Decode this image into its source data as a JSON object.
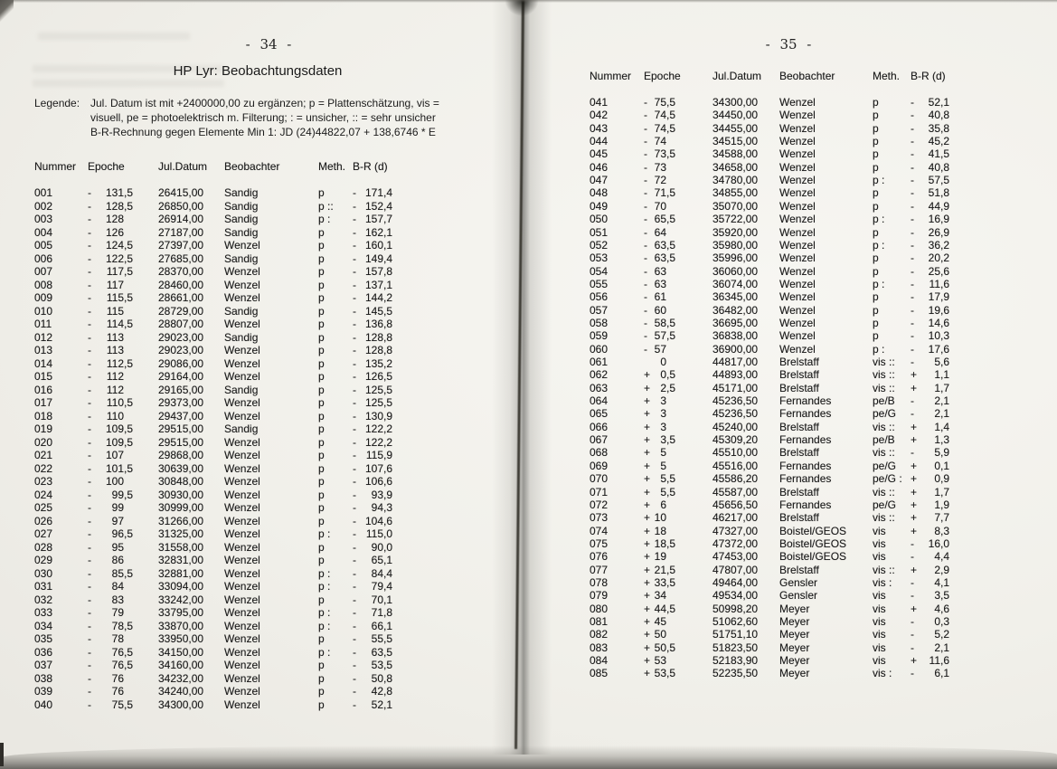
{
  "document": {
    "left_page": {
      "page_number": "- 34 -",
      "title": "HP Lyr: Beobachtungsdaten",
      "legend_label": "Legende:",
      "legend_lines": [
        "Jul. Datum ist mit +2400000,00 zu ergänzen; p = Plattenschätzung, vis =",
        "visuell, pe = photoelektrisch m. Filterung; : = unsicher, :: = sehr unsicher",
        "B-R-Rechnung gegen Elemente Min 1: JD (24)44822,07 + 138,6746 * E"
      ],
      "columns": [
        "Nummer",
        "Epoche",
        "Jul.Datum",
        "Beobachter",
        "Meth.",
        "B-R (d)"
      ],
      "rows": [
        [
          "001",
          "-",
          "131,5",
          "26415,00",
          "Sandig",
          "p",
          "-",
          "171,4"
        ],
        [
          "002",
          "-",
          "128,5",
          "26850,00",
          "Sandig",
          "p ::",
          "-",
          "152,4"
        ],
        [
          "003",
          "-",
          "128",
          "26914,00",
          "Sandig",
          "p :",
          "-",
          "157,7"
        ],
        [
          "004",
          "-",
          "126",
          "27187,00",
          "Sandig",
          "p",
          "-",
          "162,1"
        ],
        [
          "005",
          "-",
          "124,5",
          "27397,00",
          "Wenzel",
          "p",
          "-",
          "160,1"
        ],
        [
          "006",
          "-",
          "122,5",
          "27685,00",
          "Sandig",
          "p",
          "-",
          "149,4"
        ],
        [
          "007",
          "-",
          "117,5",
          "28370,00",
          "Wenzel",
          "p",
          "-",
          "157,8"
        ],
        [
          "008",
          "-",
          "117",
          "28460,00",
          "Wenzel",
          "p",
          "-",
          "137,1"
        ],
        [
          "009",
          "-",
          "115,5",
          "28661,00",
          "Wenzel",
          "p",
          "-",
          "144,2"
        ],
        [
          "010",
          "-",
          "115",
          "28729,00",
          "Sandig",
          "p",
          "-",
          "145,5"
        ],
        [
          "011",
          "-",
          "114,5",
          "28807,00",
          "Wenzel",
          "p",
          "-",
          "136,8"
        ],
        [
          "012",
          "-",
          "113",
          "29023,00",
          "Sandig",
          "p",
          "-",
          "128,8"
        ],
        [
          "013",
          "-",
          "113",
          "29023,00",
          "Wenzel",
          "p",
          "-",
          "128,8"
        ],
        [
          "014",
          "-",
          "112,5",
          "29086,00",
          "Wenzel",
          "p",
          "-",
          "135,2"
        ],
        [
          "015",
          "-",
          "112",
          "29164,00",
          "Wenzel",
          "p",
          "-",
          "126,5"
        ],
        [
          "016",
          "-",
          "112",
          "29165,00",
          "Sandig",
          "p",
          "-",
          "125,5"
        ],
        [
          "017",
          "-",
          "110,5",
          "29373,00",
          "Wenzel",
          "p",
          "-",
          "125,5"
        ],
        [
          "018",
          "-",
          "110",
          "29437,00",
          "Wenzel",
          "p",
          "-",
          "130,9"
        ],
        [
          "019",
          "-",
          "109,5",
          "29515,00",
          "Sandig",
          "p",
          "-",
          "122,2"
        ],
        [
          "020",
          "-",
          "109,5",
          "29515,00",
          "Wenzel",
          "p",
          "-",
          "122,2"
        ],
        [
          "021",
          "-",
          "107",
          "29868,00",
          "Wenzel",
          "p",
          "-",
          "115,9"
        ],
        [
          "022",
          "-",
          "101,5",
          "30639,00",
          "Wenzel",
          "p",
          "-",
          "107,6"
        ],
        [
          "023",
          "-",
          "100",
          "30848,00",
          "Wenzel",
          "p",
          "-",
          "106,6"
        ],
        [
          "024",
          "-",
          "99,5",
          "30930,00",
          "Wenzel",
          "p",
          "-",
          "93,9"
        ],
        [
          "025",
          "-",
          "99",
          "30999,00",
          "Wenzel",
          "p",
          "-",
          "94,3"
        ],
        [
          "026",
          "-",
          "97",
          "31266,00",
          "Wenzel",
          "p",
          "-",
          "104,6"
        ],
        [
          "027",
          "-",
          "96,5",
          "31325,00",
          "Wenzel",
          "p :",
          "-",
          "115,0"
        ],
        [
          "028",
          "-",
          "95",
          "31558,00",
          "Wenzel",
          "p",
          "-",
          "90,0"
        ],
        [
          "029",
          "-",
          "86",
          "32831,00",
          "Wenzel",
          "p",
          "-",
          "65,1"
        ],
        [
          "030",
          "-",
          "85,5",
          "32881,00",
          "Wenzel",
          "p :",
          "-",
          "84,4"
        ],
        [
          "031",
          "-",
          "84",
          "33094,00",
          "Wenzel",
          "p :",
          "-",
          "79,4"
        ],
        [
          "032",
          "-",
          "83",
          "33242,00",
          "Wenzel",
          "p",
          "-",
          "70,1"
        ],
        [
          "033",
          "-",
          "79",
          "33795,00",
          "Wenzel",
          "p :",
          "-",
          "71,8"
        ],
        [
          "034",
          "-",
          "78,5",
          "33870,00",
          "Wenzel",
          "p :",
          "-",
          "66,1"
        ],
        [
          "035",
          "-",
          "78",
          "33950,00",
          "Wenzel",
          "p",
          "-",
          "55,5"
        ],
        [
          "036",
          "-",
          "76,5",
          "34150,00",
          "Wenzel",
          "p :",
          "-",
          "63,5"
        ],
        [
          "037",
          "-",
          "76,5",
          "34160,00",
          "Wenzel",
          "p",
          "-",
          "53,5"
        ],
        [
          "038",
          "-",
          "76",
          "34232,00",
          "Wenzel",
          "p",
          "-",
          "50,8"
        ],
        [
          "039",
          "-",
          "76",
          "34240,00",
          "Wenzel",
          "p",
          "-",
          "42,8"
        ],
        [
          "040",
          "-",
          "75,5",
          "34300,00",
          "Wenzel",
          "p",
          "-",
          "52,1"
        ]
      ]
    },
    "right_page": {
      "page_number": "- 35 -",
      "columns": [
        "Nummer",
        "Epoche",
        "Jul.Datum",
        "Beobachter",
        "Meth.",
        "B-R (d)"
      ],
      "rows": [
        [
          "041",
          "-",
          "75,5",
          "34300,00",
          "Wenzel",
          "p",
          "-",
          "52,1"
        ],
        [
          "042",
          "-",
          "74,5",
          "34450,00",
          "Wenzel",
          "p",
          "-",
          "40,8"
        ],
        [
          "043",
          "-",
          "74,5",
          "34455,00",
          "Wenzel",
          "p",
          "-",
          "35,8"
        ],
        [
          "044",
          "-",
          "74",
          "34515,00",
          "Wenzel",
          "p",
          "-",
          "45,2"
        ],
        [
          "045",
          "-",
          "73,5",
          "34588,00",
          "Wenzel",
          "p",
          "-",
          "41,5"
        ],
        [
          "046",
          "-",
          "73",
          "34658,00",
          "Wenzel",
          "p",
          "-",
          "40,8"
        ],
        [
          "047",
          "-",
          "72",
          "34780,00",
          "Wenzel",
          "p :",
          "-",
          "57,5"
        ],
        [
          "048",
          "-",
          "71,5",
          "34855,00",
          "Wenzel",
          "p",
          "-",
          "51,8"
        ],
        [
          "049",
          "-",
          "70",
          "35070,00",
          "Wenzel",
          "p",
          "-",
          "44,9"
        ],
        [
          "050",
          "-",
          "65,5",
          "35722,00",
          "Wenzel",
          "p :",
          "-",
          "16,9"
        ],
        [
          "051",
          "-",
          "64",
          "35920,00",
          "Wenzel",
          "p",
          "-",
          "26,9"
        ],
        [
          "052",
          "-",
          "63,5",
          "35980,00",
          "Wenzel",
          "p :",
          "-",
          "36,2"
        ],
        [
          "053",
          "-",
          "63,5",
          "35996,00",
          "Wenzel",
          "p",
          "-",
          "20,2"
        ],
        [
          "054",
          "-",
          "63",
          "36060,00",
          "Wenzel",
          "p",
          "-",
          "25,6"
        ],
        [
          "055",
          "-",
          "63",
          "36074,00",
          "Wenzel",
          "p :",
          "-",
          "11,6"
        ],
        [
          "056",
          "-",
          "61",
          "36345,00",
          "Wenzel",
          "p",
          "-",
          "17,9"
        ],
        [
          "057",
          "-",
          "60",
          "36482,00",
          "Wenzel",
          "p",
          "-",
          "19,6"
        ],
        [
          "058",
          "-",
          "58,5",
          "36695,00",
          "Wenzel",
          "p",
          "-",
          "14,6"
        ],
        [
          "059",
          "-",
          "57,5",
          "36838,00",
          "Wenzel",
          "p",
          "-",
          "10,3"
        ],
        [
          "060",
          "-",
          "57",
          "36900,00",
          "Wenzel",
          "p :",
          "-",
          "17,6"
        ],
        [
          "061",
          "",
          "0",
          "44817,00",
          "Brelstaff",
          "vis ::",
          "-",
          "5,6"
        ],
        [
          "062",
          "+",
          "0,5",
          "44893,00",
          "Brelstaff",
          "vis ::",
          "+",
          "1,1"
        ],
        [
          "063",
          "+",
          "2,5",
          "45171,00",
          "Brelstaff",
          "vis ::",
          "+",
          "1,7"
        ],
        [
          "064",
          "+",
          "3",
          "45236,50",
          "Fernandes",
          "pe/B",
          "-",
          "2,1"
        ],
        [
          "065",
          "+",
          "3",
          "45236,50",
          "Fernandes",
          "pe/G",
          "-",
          "2,1"
        ],
        [
          "066",
          "+",
          "3",
          "45240,00",
          "Brelstaff",
          "vis ::",
          "+",
          "1,4"
        ],
        [
          "067",
          "+",
          "3,5",
          "45309,20",
          "Fernandes",
          "pe/B",
          "+",
          "1,3"
        ],
        [
          "068",
          "+",
          "5",
          "45510,00",
          "Brelstaff",
          "vis ::",
          "-",
          "5,9"
        ],
        [
          "069",
          "+",
          "5",
          "45516,00",
          "Fernandes",
          "pe/G",
          "+",
          "0,1"
        ],
        [
          "070",
          "+",
          "5,5",
          "45586,20",
          "Fernandes",
          "pe/G :",
          "+",
          "0,9"
        ],
        [
          "071",
          "+",
          "5,5",
          "45587,00",
          "Brelstaff",
          "vis ::",
          "+",
          "1,7"
        ],
        [
          "072",
          "+",
          "6",
          "45656,50",
          "Fernandes",
          "pe/G",
          "+",
          "1,9"
        ],
        [
          "073",
          "+",
          "10",
          "46217,00",
          "Brelstaff",
          "vis ::",
          "+",
          "7,7"
        ],
        [
          "074",
          "+",
          "18",
          "47327,00",
          "Boistel/GEOS",
          "vis",
          "+",
          "8,3"
        ],
        [
          "075",
          "+",
          "18,5",
          "47372,00",
          "Boistel/GEOS",
          "vis",
          "-",
          "16,0"
        ],
        [
          "076",
          "+",
          "19",
          "47453,00",
          "Boistel/GEOS",
          "vis",
          "-",
          "4,4"
        ],
        [
          "077",
          "+",
          "21,5",
          "47807,00",
          "Brelstaff",
          "vis ::",
          "+",
          "2,9"
        ],
        [
          "078",
          "+",
          "33,5",
          "49464,00",
          "Gensler",
          "vis :",
          "-",
          "4,1"
        ],
        [
          "079",
          "+",
          "34",
          "49534,00",
          "Gensler",
          "vis",
          "-",
          "3,5"
        ],
        [
          "080",
          "+",
          "44,5",
          "50998,20",
          "Meyer",
          "vis",
          "+",
          "4,6"
        ],
        [
          "081",
          "+",
          "45",
          "51062,60",
          "Meyer",
          "vis",
          "-",
          "0,3"
        ],
        [
          "082",
          "+",
          "50",
          "51751,10",
          "Meyer",
          "vis",
          "-",
          "5,2"
        ],
        [
          "083",
          "+",
          "50,5",
          "51823,50",
          "Meyer",
          "vis",
          "-",
          "2,1"
        ],
        [
          "084",
          "+",
          "53",
          "52183,90",
          "Meyer",
          "vis",
          "+",
          "11,6"
        ],
        [
          "085",
          "+",
          "53,5",
          "52235,50",
          "Meyer",
          "vis :",
          "-",
          "6,1"
        ]
      ]
    },
    "colors": {
      "paper": "#f1f0ea",
      "ink": "#1b1b1b",
      "gutter_shadow": "#3a3833",
      "scan_edge": "#8a8884"
    }
  }
}
